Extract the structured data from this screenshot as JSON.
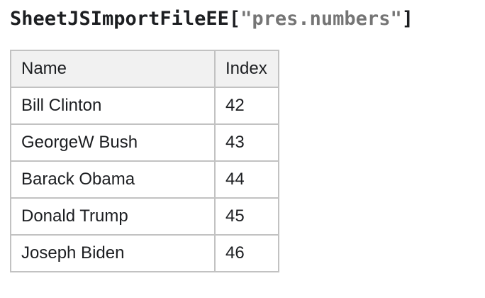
{
  "title": {
    "object_name": "SheetJSImportFileEE",
    "open_bracket": "[",
    "property_string": "\"pres.numbers\"",
    "close_bracket": "]"
  },
  "table": {
    "headers": [
      "Name",
      "Index"
    ],
    "rows": [
      {
        "name": "Bill Clinton",
        "index": "42"
      },
      {
        "name": "GeorgeW Bush",
        "index": "43"
      },
      {
        "name": "Barack Obama",
        "index": "44"
      },
      {
        "name": "Donald Trump",
        "index": "45"
      },
      {
        "name": "Joseph Biden",
        "index": "46"
      }
    ]
  },
  "colors": {
    "text": "#1c1e21",
    "string_gray": "#757575",
    "table_border": "#c2c2c2",
    "header_background": "#f1f1f1",
    "page_background": "#ffffff"
  }
}
